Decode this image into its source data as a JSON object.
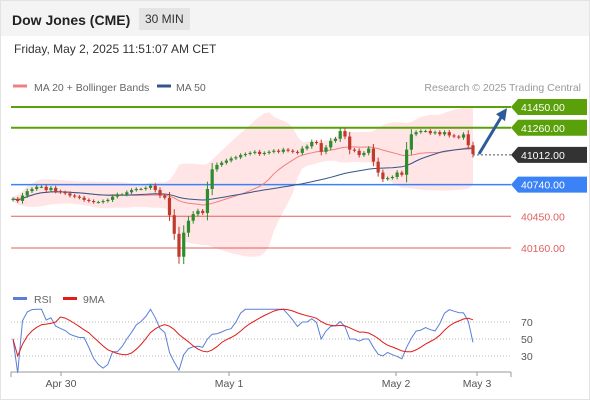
{
  "header": {
    "symbol": "Dow Jones (CME)",
    "timeframe": "30 MIN",
    "datetime": "Friday, May 2, 2025 11:51:07 AM CET"
  },
  "legend": {
    "ma20_bb": "MA 20 + Bollinger Bands",
    "ma50": "MA 50",
    "rsi": "RSI",
    "ma9": "9MA",
    "credit": "Research © 2025 Trading Central"
  },
  "colors": {
    "up": "#2e8b2e",
    "down": "#c0392b",
    "ma20": "#f08080",
    "ma50": "#34558b",
    "bands": "#ffe0e0",
    "resistance": "#5aa00a",
    "support": "#3b82f6",
    "minor_support": "#e06060",
    "current": "#333333",
    "rsi": "#5b7fd6",
    "rsi_ma": "#e21b1b",
    "forecast": "#2e5a9a"
  },
  "chart_data": [
    {
      "type": "candlestick",
      "title": "Dow Jones (CME) 30 MIN",
      "x_ticks": [
        "Apr 30",
        "May 1",
        "May 2",
        "May 3"
      ],
      "price_range": [
        40020,
        41520
      ],
      "levels": [
        {
          "value": 41450,
          "label": "41450.00",
          "kind": "resistance"
        },
        {
          "value": 41260,
          "label": "41260.00",
          "kind": "resistance"
        },
        {
          "value": 41012,
          "label": "41012.00",
          "kind": "current"
        },
        {
          "value": 40740,
          "label": "40740.00",
          "kind": "support"
        },
        {
          "value": 40450,
          "label": "40450.00",
          "kind": "minor_support"
        },
        {
          "value": 40160,
          "label": "40160.00",
          "kind": "minor_support"
        }
      ],
      "forecast": {
        "from": 41020,
        "to": 41440
      },
      "close": [
        40610,
        40590,
        40640,
        40680,
        40700,
        40720,
        40720,
        40690,
        40710,
        40680,
        40670,
        40660,
        40640,
        40630,
        40620,
        40600,
        40590,
        40580,
        40580,
        40590,
        40600,
        40630,
        40650,
        40650,
        40670,
        40690,
        40700,
        40700,
        40710,
        40730,
        40690,
        40640,
        40620,
        40460,
        40290,
        40080,
        40300,
        40410,
        40470,
        40500,
        40480,
        40700,
        40880,
        40920,
        40940,
        40960,
        40980,
        40990,
        41010,
        41020,
        41030,
        41040,
        41020,
        41030,
        41040,
        41050,
        41040,
        41060,
        41050,
        41040,
        41030,
        41070,
        41090,
        41130,
        41120,
        41040,
        41080,
        41140,
        41160,
        41230,
        41180,
        41060,
        41050,
        41010,
        41030,
        41070,
        40950,
        40850,
        40790,
        40800,
        40810,
        40850,
        40830,
        41060,
        41200,
        41220,
        41230,
        41230,
        41210,
        41220,
        41200,
        41220,
        41190,
        41180,
        41170,
        41200,
        41100,
        41020
      ]
    },
    {
      "type": "line",
      "series": [
        {
          "name": "RSI"
        },
        {
          "name": "9MA"
        }
      ],
      "y_ticks": [
        70,
        50,
        30
      ],
      "ylim": [
        10,
        85
      ]
    }
  ]
}
